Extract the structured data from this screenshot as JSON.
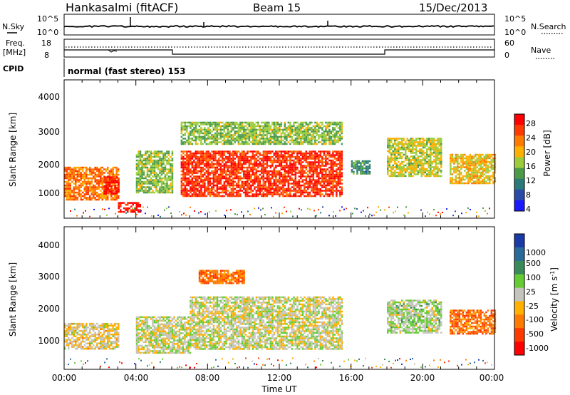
{
  "header": {
    "station": "Hankasalmi (fitACF)",
    "beam": "Beam 15",
    "date": "15/Dec/2013"
  },
  "noise_panel": {
    "left_label": "N.Sky",
    "right_label": "N.Search",
    "left_ticks": [
      "10^5",
      "10^0"
    ],
    "right_ticks": [
      "10^5",
      "10^0"
    ]
  },
  "freq_panel": {
    "left_label_1": "Freq.",
    "left_label_2": "[MHz]",
    "left_ticks": [
      "18",
      "8"
    ],
    "right_label": "Nave",
    "right_ticks": [
      "60",
      "0"
    ]
  },
  "cpid": {
    "label": "CPID",
    "text": "normal (fast stereo) 153"
  },
  "power_panel": {
    "ylabel": "Slant Range [km]",
    "yticks": [
      "4000",
      "3000",
      "2000",
      "1000"
    ],
    "colorbar_label": "Power [dB]",
    "colorbar_ticks": [
      "28",
      "24",
      "20",
      "16",
      "12",
      "8",
      "4"
    ],
    "colors": [
      "#ff0000",
      "#ff3a00",
      "#ff7a00",
      "#ffb000",
      "#9ccc3a",
      "#4a9a4a",
      "#2a7a7a",
      "#2a4aa8",
      "#1a1aff"
    ]
  },
  "velocity_panel": {
    "ylabel": "Slant Range [km]",
    "yticks": [
      "4000",
      "3000",
      "2000",
      "1000"
    ],
    "colorbar_label": "Velocity [m s",
    "colorbar_label_sup": "-1",
    "colorbar_label_end": "]",
    "colorbar_ticks": [
      "1000",
      "500",
      "100",
      "25",
      "-25",
      "-100",
      "-500",
      "-1000"
    ],
    "colors": [
      "#1a3aa8",
      "#2a6a9a",
      "#3a8a5a",
      "#66cc33",
      "#c4c4bc",
      "#ffb000",
      "#ff7a00",
      "#ff3a00",
      "#ff0000"
    ]
  },
  "xaxis": {
    "label": "Time UT",
    "ticks": [
      "00:00",
      "04:00",
      "08:00",
      "12:00",
      "16:00",
      "20:00",
      "00:00"
    ]
  },
  "chart_data": {
    "type": "heatmap",
    "title": "Hankasalmi (fitACF) Beam 15 15/Dec/2013",
    "xlabel": "Time UT",
    "ylabel": "Slant Range [km]",
    "xlim": [
      "00:00",
      "24:00"
    ],
    "ylim": [
      200,
      4500
    ],
    "panels": [
      {
        "name": "Power",
        "unit": "dB",
        "range": [
          0,
          30
        ],
        "regions": [
          {
            "t_start": 0.0,
            "t_end": 3.0,
            "r_min": 800,
            "r_max": 1800,
            "value": 22
          },
          {
            "t_start": 2.2,
            "t_end": 3.0,
            "r_min": 1000,
            "r_max": 1500,
            "value": 28
          },
          {
            "t_start": 3.0,
            "t_end": 4.2,
            "r_min": 400,
            "r_max": 700,
            "value": 28
          },
          {
            "t_start": 4.0,
            "t_end": 6.0,
            "r_min": 1000,
            "r_max": 2300,
            "value": 14
          },
          {
            "t_start": 6.5,
            "t_end": 15.5,
            "r_min": 900,
            "r_max": 2300,
            "value": 26
          },
          {
            "t_start": 6.5,
            "t_end": 15.5,
            "r_min": 2500,
            "r_max": 3200,
            "value": 14
          },
          {
            "t_start": 16.0,
            "t_end": 17.0,
            "r_min": 1600,
            "r_max": 2000,
            "value": 10
          },
          {
            "t_start": 18.0,
            "t_end": 21.0,
            "r_min": 1500,
            "r_max": 2700,
            "value": 16
          },
          {
            "t_start": 21.5,
            "t_end": 24.0,
            "r_min": 1300,
            "r_max": 2200,
            "value": 18
          }
        ]
      },
      {
        "name": "Velocity",
        "unit": "m s-1",
        "range": [
          -1000,
          1000
        ],
        "regions": [
          {
            "t_start": 0.0,
            "t_end": 3.0,
            "r_min": 800,
            "r_max": 1600,
            "value": -100
          },
          {
            "t_start": 4.0,
            "t_end": 7.0,
            "r_min": 700,
            "r_max": 1800,
            "value": 0
          },
          {
            "t_start": 7.0,
            "t_end": 15.5,
            "r_min": 800,
            "r_max": 2400,
            "value": 0
          },
          {
            "t_start": 7.5,
            "t_end": 10.0,
            "r_min": 2800,
            "r_max": 3200,
            "value": -500
          },
          {
            "t_start": 18.0,
            "t_end": 21.0,
            "r_min": 1300,
            "r_max": 2300,
            "value": 100
          },
          {
            "t_start": 21.5,
            "t_end": 24.0,
            "r_min": 1300,
            "r_max": 2000,
            "value": -500
          }
        ]
      }
    ]
  }
}
